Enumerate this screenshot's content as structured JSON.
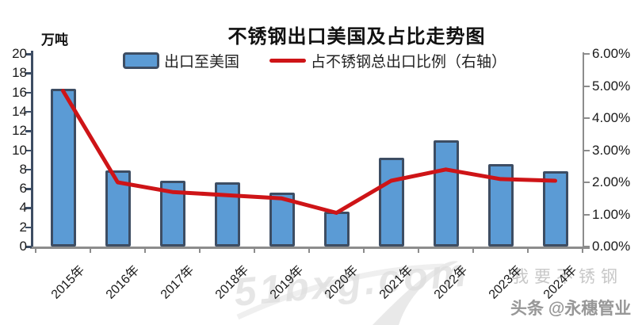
{
  "chart_data": {
    "type": "bar+line",
    "title": "不锈钢出口美国及占比走势图",
    "categories": [
      "2015年",
      "2016年",
      "2017年",
      "2018年",
      "2019年",
      "2020年",
      "2021年",
      "2022年",
      "2023年",
      "2024年"
    ],
    "series": [
      {
        "name": "出口至美国",
        "type": "bar",
        "axis": "left",
        "unit": "万吨",
        "values": [
          16.4,
          7.9,
          6.8,
          6.7,
          5.6,
          3.6,
          9.2,
          11.0,
          8.6,
          7.8
        ]
      },
      {
        "name": "占不锈钢总出口比例（右轴）",
        "type": "line",
        "axis": "right",
        "unit": "%",
        "values": [
          4.85,
          2.0,
          1.7,
          1.6,
          1.5,
          1.05,
          2.05,
          2.4,
          2.1,
          2.05
        ]
      }
    ],
    "left_axis": {
      "label": "万吨",
      "min": 0,
      "max": 20,
      "ticks": [
        "20",
        "18",
        "16",
        "14",
        "12",
        "10",
        "8",
        "6",
        "4",
        "2",
        "0"
      ]
    },
    "right_axis": {
      "min": 0,
      "max": 6,
      "ticks": [
        "6.00%",
        "5.00%",
        "4.00%",
        "3.00%",
        "2.00%",
        "1.00%",
        "0.00%"
      ]
    },
    "grid": false,
    "legend_position": "top"
  },
  "legend": {
    "bar_label": "出口至美国",
    "line_label": "占不锈钢总出口比例（右轴）"
  },
  "watermarks": {
    "site_logo": "51bxg.com",
    "site_name": "我要不锈钢",
    "toutiao": "头条 @永穗管业"
  },
  "colors": {
    "bar_fill": "#5B9BD5",
    "bar_border": "#3D4D63",
    "line_red": "#CE1417",
    "axis_dark": "#3D4D63",
    "axis_gray": "#8C8C8C"
  }
}
